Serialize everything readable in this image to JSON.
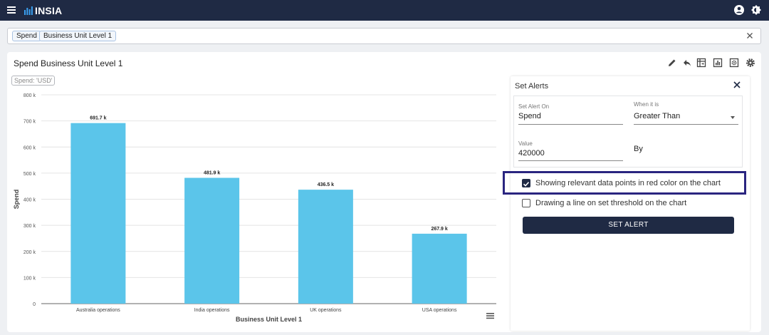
{
  "app": {
    "brand": "INSIA"
  },
  "icons": {
    "menu": "menu-icon",
    "account": "account-icon",
    "theme": "brightness-icon",
    "clear": "close-icon",
    "edit": "pencil-icon",
    "undo": "reply-icon",
    "pivot": "pivot-table-icon",
    "chart_type": "bar-chart-icon",
    "settings_alt": "gear-box-icon",
    "settings": "gear-icon",
    "chart_menu": "hamburger-icon"
  },
  "filter": {
    "chips": [
      "Spend",
      "Business Unit Level 1"
    ]
  },
  "card": {
    "title": "Spend Business Unit Level 1",
    "measure_badge": "Spend: 'USD'"
  },
  "chart_data": {
    "type": "bar",
    "categories": [
      "Australia operations",
      "India operations",
      "UK operations",
      "USA operations"
    ],
    "values": [
      691.7,
      481.9,
      436.5,
      267.9
    ],
    "data_labels": [
      "691.7 k",
      "481.9 k",
      "436.5 k",
      "267.9 k"
    ],
    "yticks": [
      "0",
      "100 k",
      "200 k",
      "300 k",
      "400 k",
      "500 k",
      "600 k",
      "700 k",
      "800 k"
    ],
    "ylim": [
      0,
      800
    ],
    "xlabel": "Business Unit Level 1",
    "ylabel": "Spend",
    "unit": "k",
    "bar_color": "#5bc5ea",
    "grid": true
  },
  "alerts": {
    "title": "Set Alerts",
    "set_alert_on": {
      "label": "Set Alert On",
      "value": "Spend"
    },
    "when_it_is": {
      "label": "When it is",
      "value": "Greater Than"
    },
    "value": {
      "label": "Value",
      "value": "420000"
    },
    "by_label": "By",
    "options": [
      {
        "label": "Showing relevant data points in red color on the chart",
        "checked": true
      },
      {
        "label": "Drawing a line on set threshold on the chart",
        "checked": false
      }
    ],
    "button": "SET ALERT",
    "highlight_color": "#2a2580"
  },
  "colors": {
    "topbar": "#1f2a44",
    "accent": "#1f2a44",
    "bar": "#5bc5ea"
  }
}
